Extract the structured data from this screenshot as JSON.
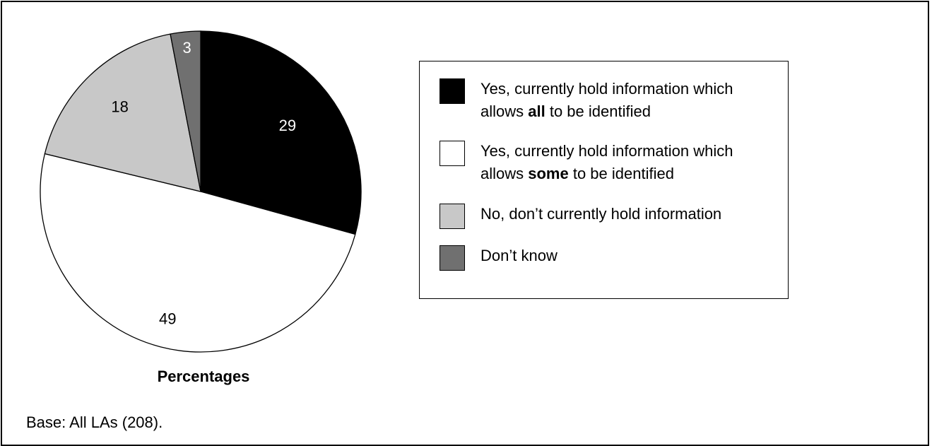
{
  "chart_data": {
    "type": "pie",
    "title": "Percentages",
    "categories": [
      "Yes, currently hold information which allows all to be identified",
      "Yes, currently hold information which allows some to be identified",
      "No, don’t currently hold information",
      "Don’t know"
    ],
    "values": [
      29,
      49,
      18,
      3
    ],
    "colors": [
      "#000000",
      "#ffffff",
      "#c8c8c8",
      "#707070"
    ],
    "label_colors": [
      "#ffffff",
      "#000000",
      "#000000",
      "#ffffff"
    ],
    "legend_placement": "right"
  },
  "legend": {
    "items": [
      {
        "line1": "Yes, currently hold information which",
        "pre": "allows ",
        "bold": "all",
        "post": " to be identified"
      },
      {
        "line1": "Yes, currently hold information which",
        "pre": "allows ",
        "bold": "some",
        "post": " to be identified"
      },
      {
        "line1": "No, don’t currently hold information"
      },
      {
        "line1": "Don’t know"
      }
    ]
  },
  "footer": {
    "base_note": "Base: All LAs (208)."
  }
}
